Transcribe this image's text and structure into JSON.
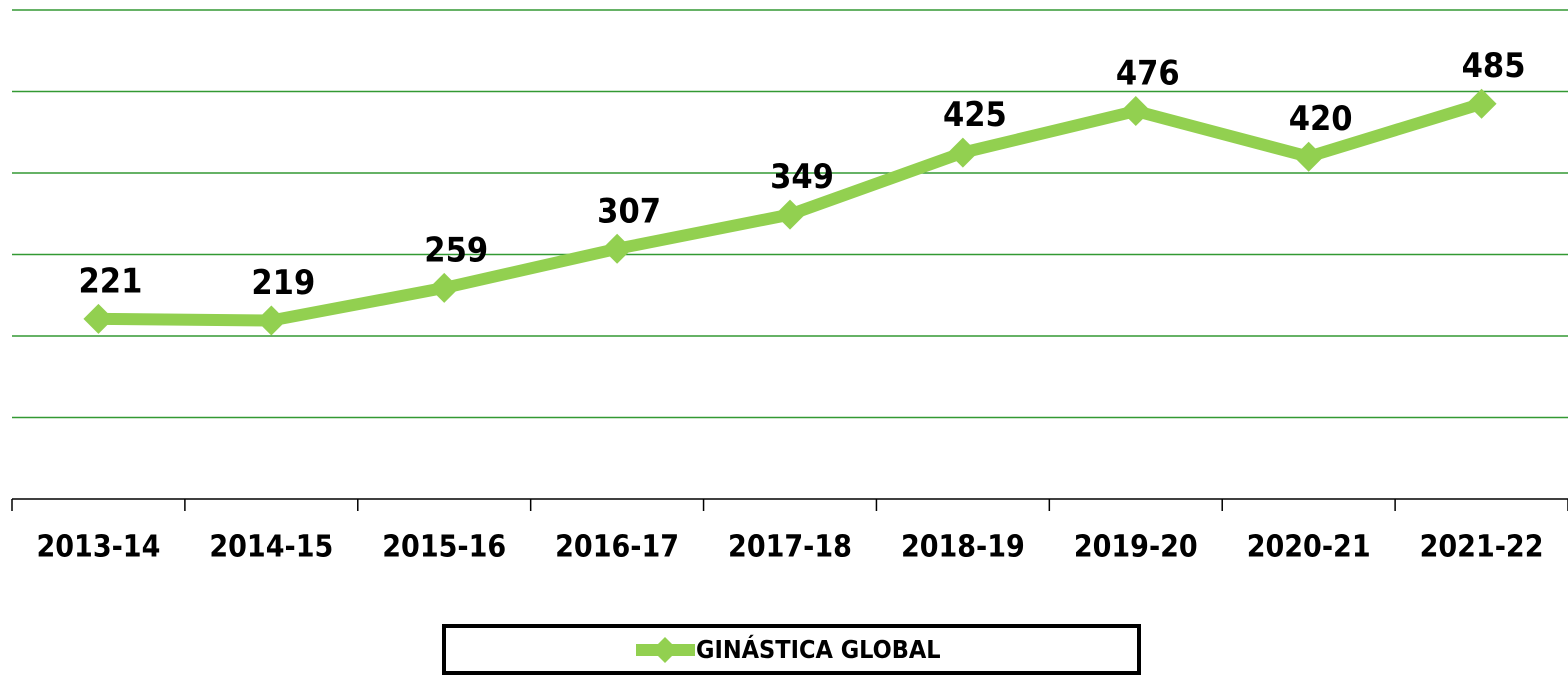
{
  "chart_data": {
    "type": "line",
    "categories": [
      "2013-14",
      "2014-15",
      "2015-16",
      "2016-17",
      "2017-18",
      "2018-19",
      "2019-20",
      "2020-21",
      "2021-22"
    ],
    "series": [
      {
        "name": "GINÁSTICA GLOBAL",
        "color": "#92d050",
        "values": [
          221,
          219,
          259,
          307,
          349,
          425,
          476,
          420,
          485
        ]
      }
    ],
    "ylim": [
      0,
      600
    ],
    "yticks": [
      0,
      100,
      200,
      300,
      400,
      500,
      600
    ],
    "grid": true,
    "grid_color": "#339933",
    "legend": "bottom"
  }
}
